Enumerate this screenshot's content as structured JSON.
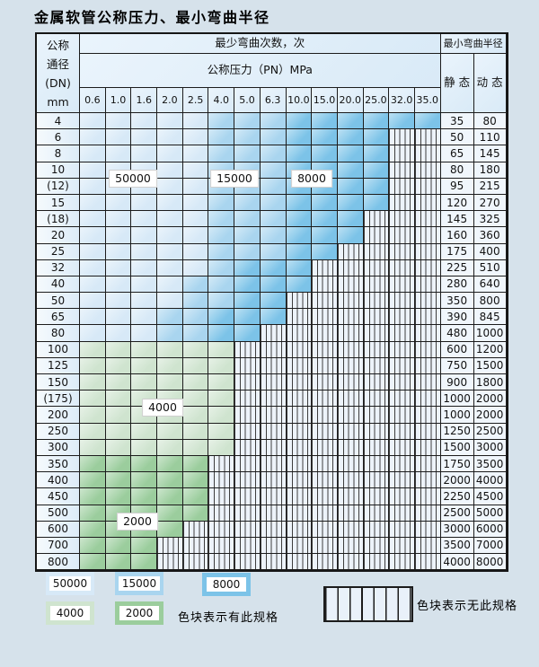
{
  "page": {
    "title": "金属软管公称压力、最小弯曲半径"
  },
  "table": {
    "corner_lines": [
      "公称",
      "通径",
      "(DN)",
      "mm"
    ],
    "bend_times_header": "最少弯曲次数，次",
    "pressure_header": "公称压力（PN）MPa",
    "radius_header": "最小弯曲半径",
    "static_label": "静 态",
    "dynamic_label": "动 态",
    "pressure_columns": [
      "0.6",
      "1.0",
      "1.6",
      "2.0",
      "2.5",
      "4.0",
      "5.0",
      "6.3",
      "10.0",
      "15.0",
      "20.0",
      "25.0",
      "32.0",
      "35.0"
    ],
    "cell_code_meaning": {
      "L": "50000",
      "M": "15000",
      "D": "8000",
      "G": "4000",
      "H": "2000",
      "X": "no-spec"
    },
    "rows": [
      {
        "dn": "4",
        "cells": "LLLLLMMMDDDDDD",
        "static": "35",
        "dynamic": "80"
      },
      {
        "dn": "6",
        "cells": "LLLLLMMMDDDDXX",
        "static": "50",
        "dynamic": "110"
      },
      {
        "dn": "8",
        "cells": "LLLLLMMMDDDDXX",
        "static": "65",
        "dynamic": "145"
      },
      {
        "dn": "10",
        "cells": "LLLLLMMMDDDDXX",
        "static": "80",
        "dynamic": "180"
      },
      {
        "dn": "(12)",
        "cells": "LLLLLMMMDDDDXX",
        "static": "95",
        "dynamic": "215"
      },
      {
        "dn": "15",
        "cells": "LLLLLMMMDDDDXX",
        "static": "120",
        "dynamic": "270"
      },
      {
        "dn": "(18)",
        "cells": "LLLLLMMMDDDXXX",
        "static": "145",
        "dynamic": "325"
      },
      {
        "dn": "20",
        "cells": "LLLLLMMMDDDXXX",
        "static": "160",
        "dynamic": "360"
      },
      {
        "dn": "25",
        "cells": "LLLLLMMMDDXXXX",
        "static": "175",
        "dynamic": "400"
      },
      {
        "dn": "32",
        "cells": "LLLLLMDDDXXXXX",
        "static": "225",
        "dynamic": "510"
      },
      {
        "dn": "40",
        "cells": "LLLLMMDDDXXXXX",
        "static": "280",
        "dynamic": "640"
      },
      {
        "dn": "50",
        "cells": "LLLLMMDDXXXXXX",
        "static": "350",
        "dynamic": "800"
      },
      {
        "dn": "65",
        "cells": "LLLMMDDDXXXXXX",
        "static": "390",
        "dynamic": "845"
      },
      {
        "dn": "80",
        "cells": "LLLMMDDXXXXXXX",
        "static": "480",
        "dynamic": "1000"
      },
      {
        "dn": "100",
        "cells": "GGGGGGXXXXXXXX",
        "static": "600",
        "dynamic": "1200"
      },
      {
        "dn": "125",
        "cells": "GGGGGGXXXXXXXX",
        "static": "750",
        "dynamic": "1500"
      },
      {
        "dn": "150",
        "cells": "GGGGGGXXXXXXXX",
        "static": "900",
        "dynamic": "1800"
      },
      {
        "dn": "(175)",
        "cells": "GGGGGGXXXXXXXX",
        "static": "1000",
        "dynamic": "2000"
      },
      {
        "dn": "200",
        "cells": "GGGGGGXXXXXXXX",
        "static": "1000",
        "dynamic": "2000"
      },
      {
        "dn": "250",
        "cells": "GGGGGGXXXXXXXX",
        "static": "1250",
        "dynamic": "2500"
      },
      {
        "dn": "300",
        "cells": "GGGGGGXXXXXXXX",
        "static": "1500",
        "dynamic": "3000"
      },
      {
        "dn": "350",
        "cells": "HHHHHXXXXXXXXX",
        "static": "1750",
        "dynamic": "3500"
      },
      {
        "dn": "400",
        "cells": "HHHHHXXXXXXXXX",
        "static": "2000",
        "dynamic": "4000"
      },
      {
        "dn": "450",
        "cells": "HHHHHXXXXXXXXX",
        "static": "2250",
        "dynamic": "4500"
      },
      {
        "dn": "500",
        "cells": "HHHHHXXXXXXXXX",
        "static": "2500",
        "dynamic": "5000"
      },
      {
        "dn": "600",
        "cells": "HHHHXXXXXXXXXX",
        "static": "3000",
        "dynamic": "6000"
      },
      {
        "dn": "700",
        "cells": "HHHXXXXXXXXXXX",
        "static": "3500",
        "dynamic": "7000"
      },
      {
        "dn": "800",
        "cells": "HHHXXXXXXXXXXX",
        "static": "4000",
        "dynamic": "8000"
      }
    ],
    "region_labels": [
      "50000",
      "15000",
      "8000",
      "4000",
      "2000"
    ]
  },
  "legend": {
    "items": [
      {
        "label": "50000",
        "code": "L"
      },
      {
        "label": "15000",
        "code": "M"
      },
      {
        "label": "8000",
        "code": "D"
      },
      {
        "label": "4000",
        "code": "G"
      },
      {
        "label": "2000",
        "code": "H"
      }
    ],
    "has_spec_text": "色块表示有此规格",
    "no_spec_text": "色块表示无此规格"
  },
  "colors": {
    "c50000": "#d7e9f7",
    "c15000": "#a9d5ef",
    "c8000": "#7cc3e8",
    "c4000": "#cfe4cf",
    "c2000": "#9bcd9d",
    "hatch_bg": "#edf3fa",
    "grid": "#1c1c1c"
  }
}
